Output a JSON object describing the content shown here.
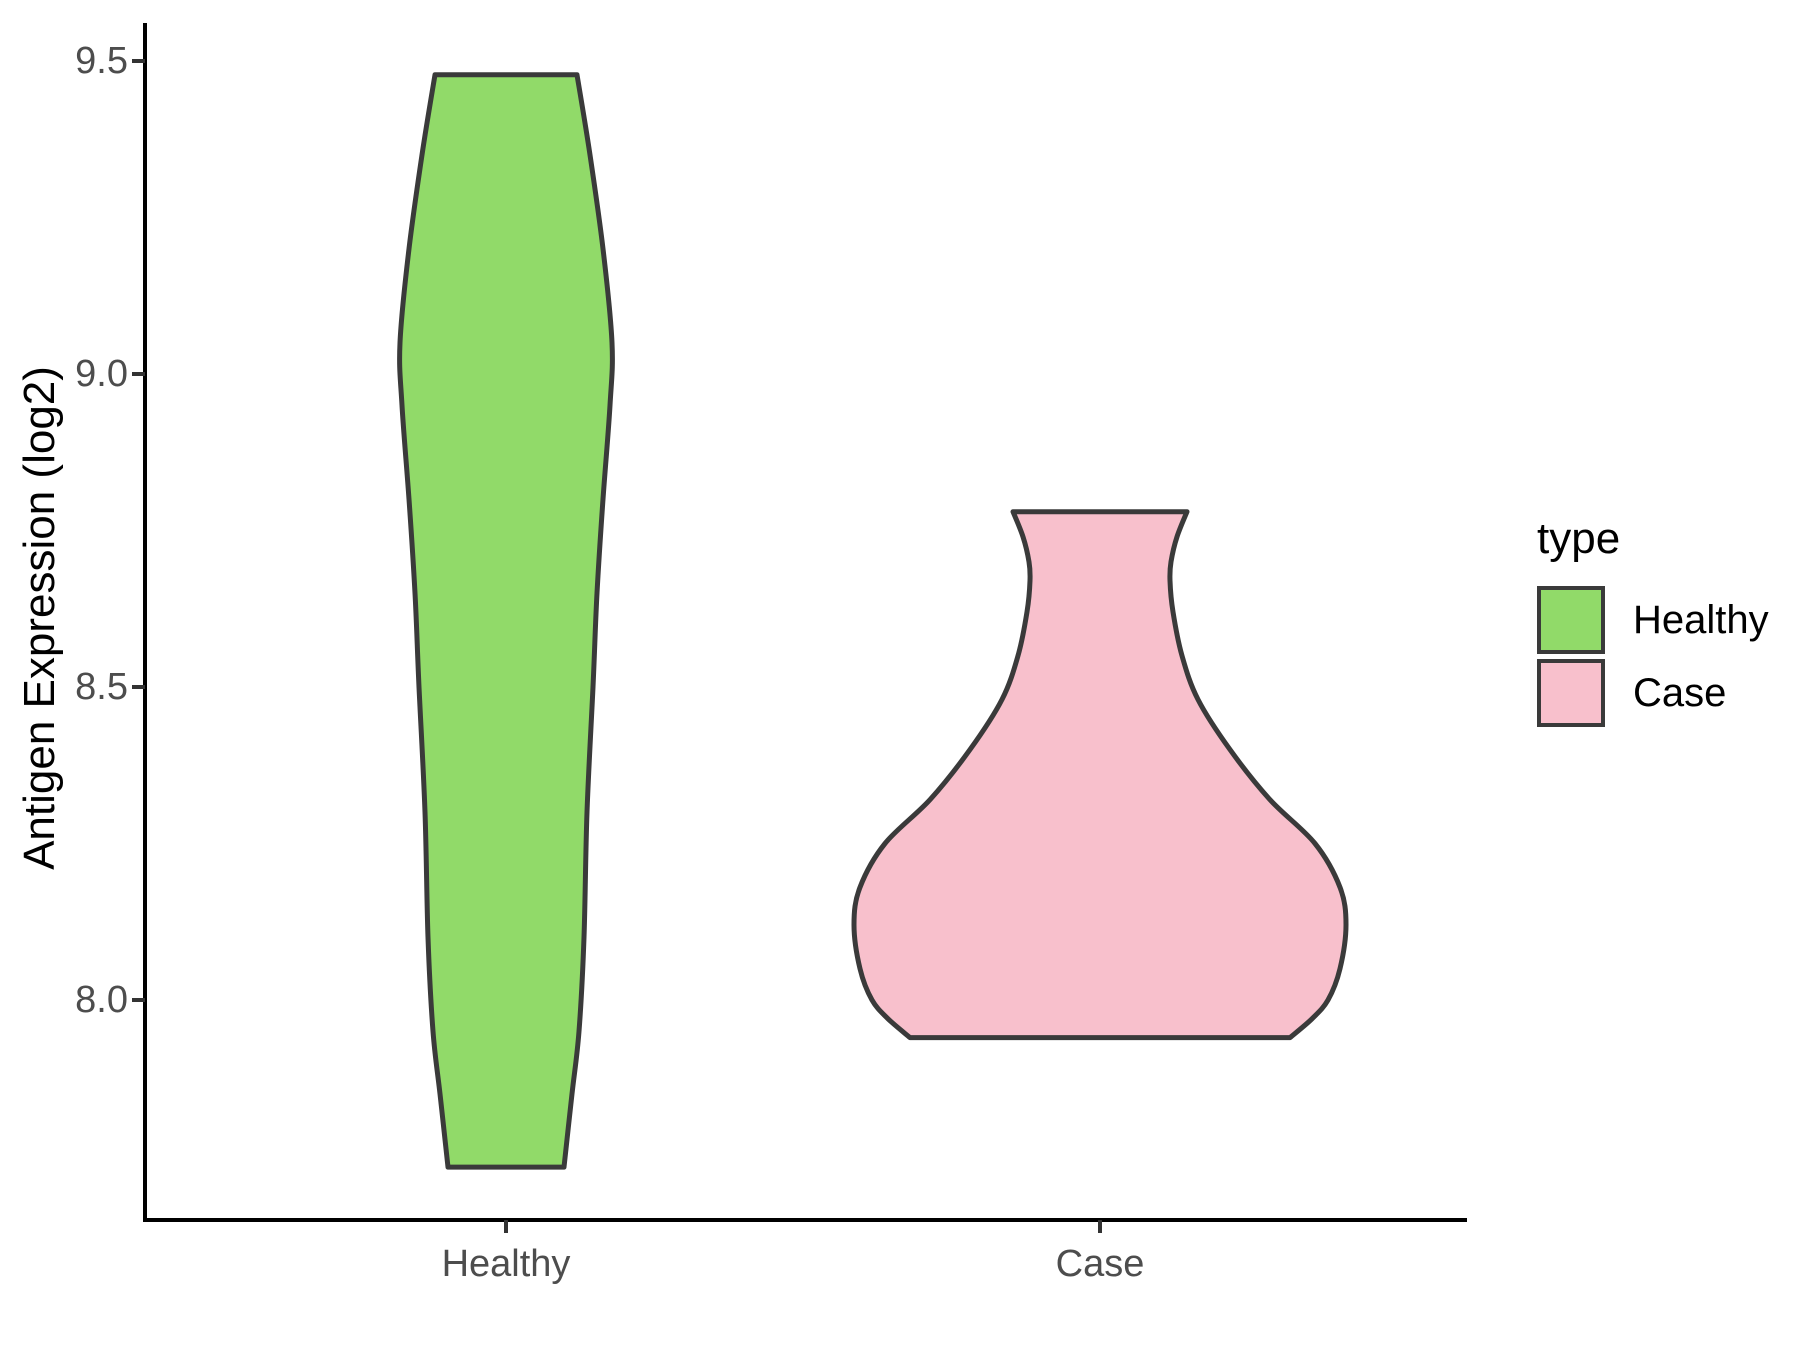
{
  "chart_data": {
    "type": "violin",
    "title": "",
    "xlabel": "",
    "ylabel": "Antigen Expression (log2)",
    "x_categories": [
      "Healthy",
      "Case"
    ],
    "y_ticks": [
      {
        "label": "9.5",
        "value": 9.5
      },
      {
        "label": "9.0",
        "value": 9.0
      },
      {
        "label": "8.5",
        "value": 8.5
      },
      {
        "label": "8.0",
        "value": 8.0
      }
    ],
    "y_axis_range": [
      7.65,
      9.56
    ],
    "grid": "off",
    "legend": {
      "title": "type",
      "position": "right",
      "entries": [
        {
          "label": "Healthy",
          "color": "#91DA69"
        },
        {
          "label": "Case",
          "color": "#F8C0CC"
        }
      ]
    },
    "series": [
      {
        "name": "Healthy",
        "category": "Healthy",
        "fill": "#91DA69",
        "outline": "#3A3A3A",
        "data_range": [
          7.73,
          9.48
        ],
        "density_profile": [
          [
            9.478,
            71
          ],
          [
            9.35,
            84
          ],
          [
            9.2,
            97
          ],
          [
            9.05,
            106
          ],
          [
            8.95,
            104
          ],
          [
            8.8,
            97
          ],
          [
            8.65,
            91
          ],
          [
            8.5,
            87
          ],
          [
            8.3,
            81
          ],
          [
            8.1,
            78
          ],
          [
            7.95,
            73
          ],
          [
            7.85,
            66
          ],
          [
            7.733,
            58
          ]
        ]
      },
      {
        "name": "Case",
        "category": "Case",
        "fill": "#F8C0CC",
        "outline": "#3A3A3A",
        "data_range": [
          7.94,
          8.78
        ],
        "density_profile": [
          [
            8.78,
            87
          ],
          [
            8.74,
            77
          ],
          [
            8.7,
            71
          ],
          [
            8.67,
            70
          ],
          [
            8.62,
            73
          ],
          [
            8.55,
            82
          ],
          [
            8.48,
            98
          ],
          [
            8.4,
            130
          ],
          [
            8.32,
            170
          ],
          [
            8.25,
            215
          ],
          [
            8.18,
            240
          ],
          [
            8.12,
            246
          ],
          [
            8.05,
            240
          ],
          [
            8.0,
            228
          ],
          [
            7.97,
            212
          ],
          [
            7.94,
            190
          ]
        ]
      }
    ]
  },
  "colors": {
    "background": "#FFFFFF",
    "axis_line": "#000000",
    "tick_mark": "#333333",
    "tick_label": "#4D4D4D",
    "axis_title": "#000000",
    "legend_text": "#000000"
  }
}
